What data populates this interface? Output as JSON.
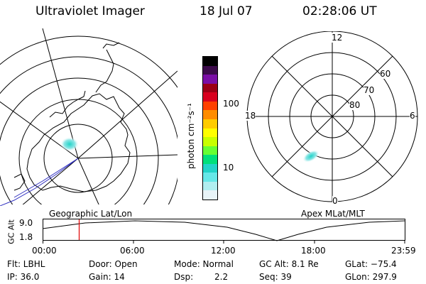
{
  "header": {
    "title": "Ultraviolet Imager",
    "date": "18 Jul 07",
    "time": "02:28:06 UT"
  },
  "colorbar": {
    "unit_label": "photon cm⁻²s⁻¹",
    "tick_100": "100",
    "tick_10": "10",
    "colors": [
      "#000000",
      "#3b0a4a",
      "#7a0ea5",
      "#9b0014",
      "#d8001e",
      "#ff4000",
      "#ff8c00",
      "#ffcc00",
      "#ffff00",
      "#c8ff00",
      "#66ff33",
      "#00e07a",
      "#22d4c8",
      "#66e8e8",
      "#b0eef0",
      "#e8f4f8"
    ]
  },
  "geo_map": {
    "caption": "Geographic Lat/Lon"
  },
  "apex_map": {
    "caption": "Apex MLat/MLT",
    "mlt_top": "12",
    "mlt_left": "18",
    "mlt_right": "6",
    "mlt_bottom": "0",
    "lat_60": "60",
    "lat_70": "70",
    "lat_80": "80"
  },
  "altitude_plot": {
    "ylabel": "GC Alt",
    "y_top": "9.0",
    "y_bottom": "1.8",
    "ticks": [
      "00:00",
      "06:00",
      "12:00",
      "18:00",
      "23:59"
    ],
    "current_time_fraction": 0.1
  },
  "info": {
    "filter": "Flt: LBHL",
    "door": "Door: Open",
    "mode": "Mode: Normal",
    "gc_alt": "GC Alt: 8.1 Re",
    "glat": "GLat: −75.4",
    "ip": "IP: 36.0",
    "gain": "Gain: 14",
    "dsp_label": "Dsp:",
    "dsp_value": "2.2",
    "seq": "Seq: 39",
    "glon": "GLon: 297.9"
  }
}
